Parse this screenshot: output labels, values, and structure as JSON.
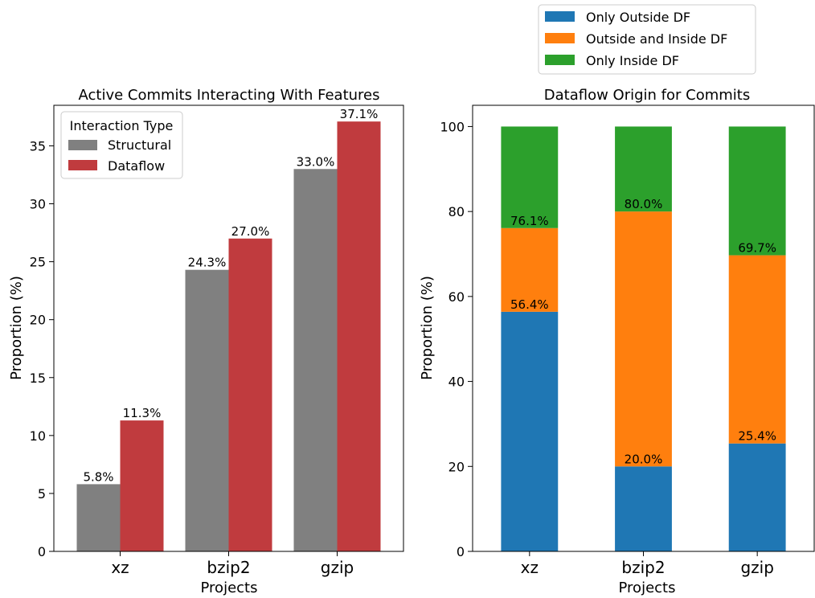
{
  "chart_data": [
    {
      "type": "bar",
      "title": "Active Commits Interacting With Features",
      "xlabel": "Projects",
      "ylabel": "Proportion (%)",
      "categories": [
        "xz",
        "bzip2",
        "gzip"
      ],
      "ylim": [
        0,
        38.5
      ],
      "yticks": [
        0,
        5,
        10,
        15,
        20,
        25,
        30,
        35
      ],
      "legend": {
        "title": "Interaction Type",
        "placement": "top-left"
      },
      "series": [
        {
          "name": "Structural",
          "color": "#808080",
          "values": [
            5.8,
            24.3,
            33.0
          ],
          "labels": [
            "5.8%",
            "24.3%",
            "33.0%"
          ]
        },
        {
          "name": "Dataflow",
          "color": "#c03b3e",
          "values": [
            11.3,
            27.0,
            37.1
          ],
          "labels": [
            "11.3%",
            "27.0%",
            "37.1%"
          ]
        }
      ],
      "grid": false
    },
    {
      "type": "bar",
      "stacked": true,
      "title": "Dataflow Origin for Commits",
      "xlabel": "Projects",
      "ylabel": "Proportion (%)",
      "categories": [
        "xz",
        "bzip2",
        "gzip"
      ],
      "ylim": [
        0,
        105
      ],
      "yticks": [
        0,
        20,
        40,
        60,
        80,
        100
      ],
      "legend": {
        "placement": "above"
      },
      "series": [
        {
          "name": "Only Outside DF",
          "color": "#1f77b4",
          "values": [
            56.4,
            20.0,
            25.4
          ]
        },
        {
          "name": "Outside and Inside DF",
          "color": "#ff7f0e",
          "values": [
            19.7,
            60.0,
            44.3
          ]
        },
        {
          "name": "Only Inside DF",
          "color": "#2ca02c",
          "values": [
            23.9,
            20.0,
            30.3
          ]
        }
      ],
      "cumulative_labels": [
        [
          "56.4%",
          "20.0%",
          "25.4%"
        ],
        [
          "76.1%",
          "80.0%",
          "69.7%"
        ]
      ],
      "grid": false
    }
  ]
}
